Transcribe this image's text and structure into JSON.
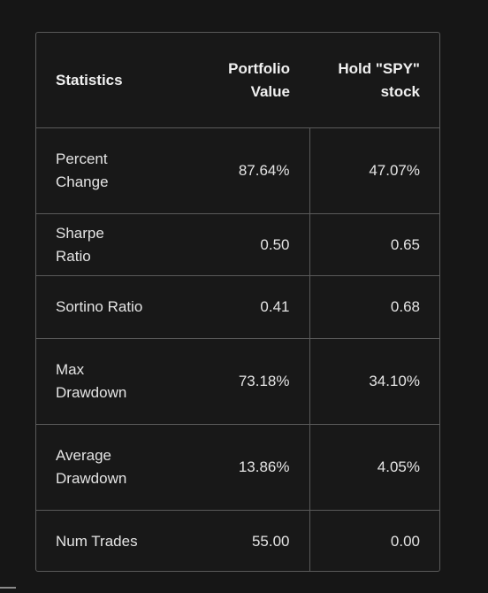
{
  "table": {
    "headers": {
      "statistics": "Statistics",
      "portfolio_line1": "Portfolio",
      "portfolio_line2": "Value",
      "spy_line1": "Hold \"SPY\"",
      "spy_line2": "stock"
    },
    "rows": [
      {
        "label_line1": "Percent",
        "label_line2": "Change",
        "portfolio": "87.64%",
        "spy": "47.07%"
      },
      {
        "label_line1": "Sharpe Ratio",
        "label_line2": "",
        "portfolio": "0.50",
        "spy": "0.65"
      },
      {
        "label_line1": "Sortino Ratio",
        "label_line2": "",
        "portfolio": "0.41",
        "spy": "0.68"
      },
      {
        "label_line1": "Max",
        "label_line2": "Drawdown",
        "portfolio": "73.18%",
        "spy": "34.10%"
      },
      {
        "label_line1": "Average",
        "label_line2": "Drawdown",
        "portfolio": "13.86%",
        "spy": "4.05%"
      },
      {
        "label_line1": "Num Trades",
        "label_line2": "",
        "portfolio": "55.00",
        "spy": "0.00"
      }
    ]
  }
}
